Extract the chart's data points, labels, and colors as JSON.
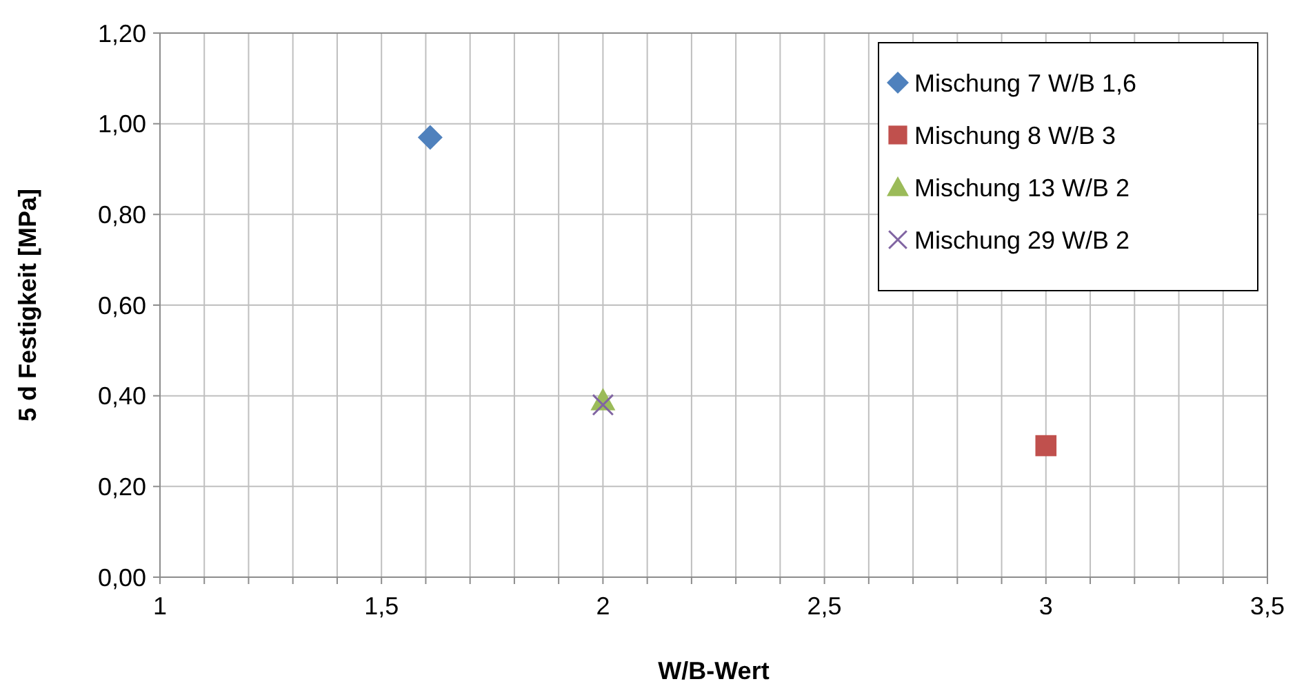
{
  "chart_data": {
    "type": "scatter",
    "xlabel": "W/B-Wert",
    "ylabel": "5 d Festigkeit [MPa]",
    "xlim": [
      1,
      3.5
    ],
    "ylim": [
      0,
      1.2
    ],
    "xticks": [
      {
        "value": 1,
        "label": "1"
      },
      {
        "value": 1.1,
        "label": null
      },
      {
        "value": 1.2,
        "label": null
      },
      {
        "value": 1.3,
        "label": null
      },
      {
        "value": 1.4,
        "label": null
      },
      {
        "value": 1.5,
        "label": "1,5"
      },
      {
        "value": 1.6,
        "label": null
      },
      {
        "value": 1.7,
        "label": null
      },
      {
        "value": 1.8,
        "label": null
      },
      {
        "value": 1.9,
        "label": null
      },
      {
        "value": 2,
        "label": "2"
      },
      {
        "value": 2.1,
        "label": null
      },
      {
        "value": 2.2,
        "label": null
      },
      {
        "value": 2.3,
        "label": null
      },
      {
        "value": 2.4,
        "label": null
      },
      {
        "value": 2.5,
        "label": "2,5"
      },
      {
        "value": 2.6,
        "label": null
      },
      {
        "value": 2.7,
        "label": null
      },
      {
        "value": 2.8,
        "label": null
      },
      {
        "value": 2.9,
        "label": null
      },
      {
        "value": 3,
        "label": "3"
      },
      {
        "value": 3.1,
        "label": null
      },
      {
        "value": 3.2,
        "label": null
      },
      {
        "value": 3.3,
        "label": null
      },
      {
        "value": 3.4,
        "label": null
      },
      {
        "value": 3.5,
        "label": "3,5"
      }
    ],
    "yticks": [
      {
        "value": 0,
        "label": "0,00"
      },
      {
        "value": 0.2,
        "label": "0,20"
      },
      {
        "value": 0.4,
        "label": "0,40"
      },
      {
        "value": 0.6,
        "label": "0,60"
      },
      {
        "value": 0.8,
        "label": "0,80"
      },
      {
        "value": 1,
        "label": "1,00"
      },
      {
        "value": 1.2,
        "label": "1,20"
      }
    ],
    "grid": true,
    "legend": "top right",
    "series": [
      {
        "name": "Mischung 7 W/B 1,6",
        "color": "#4f81bd",
        "marker": "diamond",
        "x": [
          1.61
        ],
        "values": [
          0.97
        ]
      },
      {
        "name": "Mischung 8 W/B 3",
        "color": "#c0504d",
        "marker": "square",
        "x": [
          3
        ],
        "values": [
          0.29
        ]
      },
      {
        "name": "Mischung 13 W/B 2",
        "color": "#9bbb59",
        "marker": "triangle",
        "x": [
          2
        ],
        "values": [
          0.39
        ]
      },
      {
        "name": "Mischung 29 W/B 2",
        "color": "#8064a2",
        "marker": "cross",
        "x": [
          2
        ],
        "values": [
          0.38
        ]
      }
    ]
  }
}
